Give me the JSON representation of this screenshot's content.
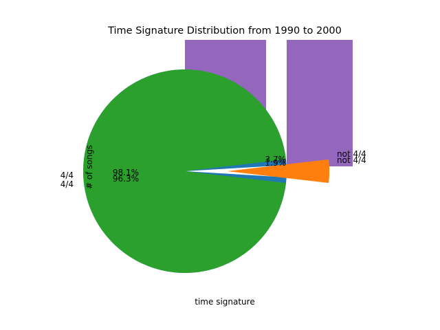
{
  "chart_data": [
    {
      "type": "bar",
      "title": "Time Signature Distribution from 1990 to 2000",
      "xlabel": "time signature",
      "ylabel": "# of songs",
      "categories": [
        "",
        ""
      ],
      "values": [
        1,
        1
      ],
      "colors": [
        "#9467bd"
      ],
      "grid": false
    },
    {
      "type": "pie",
      "name": "outer",
      "slices": [
        {
          "label": "4/4",
          "value": 98.1,
          "pct": "98.1%"
        },
        {
          "label": "not 4/4",
          "value": 1.9,
          "pct": "1.9%"
        }
      ],
      "colors": [
        "#1f77b4",
        "#ff7f0e"
      ]
    },
    {
      "type": "pie",
      "name": "inner",
      "slices": [
        {
          "label": "4/4",
          "value": 96.3,
          "pct": "96.3%"
        },
        {
          "label": "not 4/4",
          "value": 3.7,
          "pct": "3.7%"
        }
      ],
      "colors": [
        "#2ca02c",
        "#ff7f0e"
      ]
    }
  ]
}
